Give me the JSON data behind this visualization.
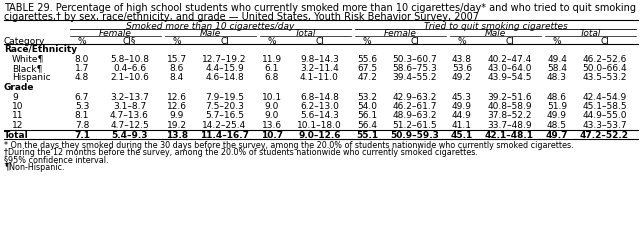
{
  "title_line1": "TABLE 29. Percentage of high school students who currently smoked more than 10 cigarettes/day* and who tried to quit smoking",
  "title_line2": "cigarettes,† by sex, race/ethnicity, and grade — United States, Youth Risk Behavior Survey, 2007",
  "col_headers_level1": [
    "Smoked more than 10 cigarettes/day",
    "Tried to quit smoking cigarettes"
  ],
  "col_headers_level2": [
    "Female",
    "Male",
    "Total",
    "Female",
    "Male",
    "Total"
  ],
  "col_headers_level3": [
    "%",
    "CI§",
    "%",
    "CI",
    "%",
    "CI",
    "%",
    "CI",
    "%",
    "CI",
    "%",
    "CI"
  ],
  "category_col": "Category",
  "rows": [
    {
      "label": "Race/Ethnicity",
      "section": true,
      "values": []
    },
    {
      "label": "White¶",
      "section": false,
      "indent": true,
      "bold": false,
      "values": [
        "8.0",
        "5.8–10.8",
        "15.7",
        "12.7–19.2",
        "11.9",
        "9.8–14.3",
        "55.6",
        "50.3–60.7",
        "43.8",
        "40.2–47.4",
        "49.4",
        "46.2–52.6"
      ]
    },
    {
      "label": "Black¶",
      "section": false,
      "indent": true,
      "bold": false,
      "values": [
        "1.7",
        "0.4–6.6",
        "8.6",
        "4.4–15.9",
        "6.1",
        "3.2–11.4",
        "67.5",
        "58.6–75.3",
        "53.6",
        "43.0–64.0",
        "58.4",
        "50.0–66.4"
      ]
    },
    {
      "label": "Hispanic",
      "section": false,
      "indent": true,
      "bold": false,
      "values": [
        "4.8",
        "2.1–10.6",
        "8.4",
        "4.6–14.8",
        "6.8",
        "4.1–11.0",
        "47.2",
        "39.4–55.2",
        "49.2",
        "43.9–54.5",
        "48.3",
        "43.5–53.2"
      ]
    },
    {
      "label": "Grade",
      "section": true,
      "values": []
    },
    {
      "label": "9",
      "section": false,
      "indent": true,
      "bold": false,
      "values": [
        "6.7",
        "3.2–13.7",
        "12.6",
        "7.9–19.5",
        "10.1",
        "6.8–14.8",
        "53.2",
        "42.9–63.2",
        "45.3",
        "39.2–51.6",
        "48.6",
        "42.4–54.9"
      ]
    },
    {
      "label": "10",
      "section": false,
      "indent": true,
      "bold": false,
      "values": [
        "5.3",
        "3.1–8.7",
        "12.6",
        "7.5–20.3",
        "9.0",
        "6.2–13.0",
        "54.0",
        "46.2–61.7",
        "49.9",
        "40.8–58.9",
        "51.9",
        "45.1–58.5"
      ]
    },
    {
      "label": "11",
      "section": false,
      "indent": true,
      "bold": false,
      "values": [
        "8.1",
        "4.7–13.6",
        "9.9",
        "5.7–16.5",
        "9.0",
        "5.6–14.3",
        "56.1",
        "48.9–63.2",
        "44.9",
        "37.8–52.2",
        "49.9",
        "44.9–55.0"
      ]
    },
    {
      "label": "12",
      "section": false,
      "indent": true,
      "bold": false,
      "values": [
        "7.8",
        "4.7–12.5",
        "19.2",
        "14.2–25.4",
        "13.6",
        "10.1–18.0",
        "56.4",
        "51.2–61.5",
        "41.1",
        "33.7–48.9",
        "48.5",
        "43.3–53.7"
      ]
    },
    {
      "label": "Total",
      "section": false,
      "indent": false,
      "bold": true,
      "values": [
        "7.1",
        "5.4–9.3",
        "13.8",
        "11.4–16.7",
        "10.7",
        "9.0–12.6",
        "55.1",
        "50.9–59.3",
        "45.1",
        "42.1–48.1",
        "49.7",
        "47.2–52.2"
      ]
    }
  ],
  "footnotes": [
    "* On the days they smoked during the 30 days before the survey, among the 20.0% of students nationwide who currently smoked cigarettes.",
    "†During the 12 months before the survey, among the 20.0% of students nationwide who currently smoked cigarettes.",
    "§95% confidence interval.",
    "¶Non-Hispanic."
  ],
  "background_color": "#ffffff",
  "text_color": "#000000",
  "font_size": 6.5,
  "title_font_size": 7.0,
  "footnote_font_size": 5.8
}
